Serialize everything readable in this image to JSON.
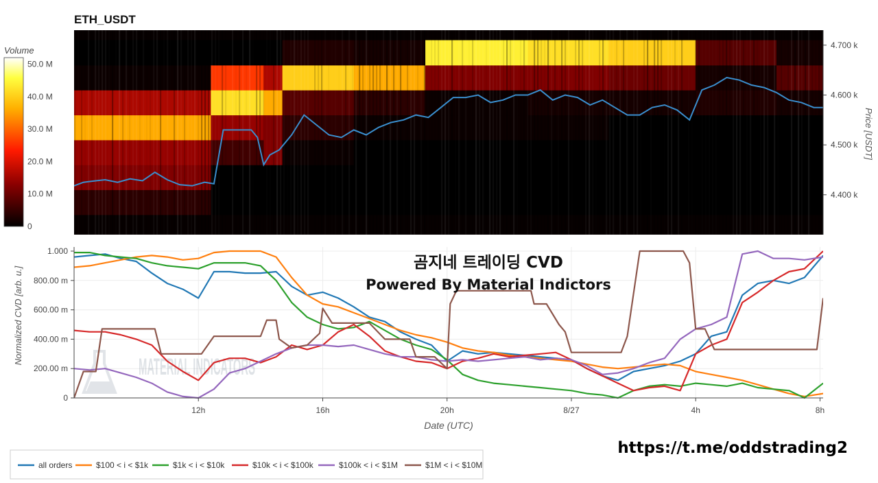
{
  "chart_data": [
    {
      "type": "heatmap",
      "title": "ETH_USDT",
      "colorbar": {
        "title": "Volume",
        "ticks": [
          "50.0 M",
          "40.0 M",
          "30.0 M",
          "20.0 M",
          "10.0 M",
          "0"
        ],
        "tick_values": [
          50,
          40,
          30,
          20,
          10,
          0
        ],
        "range": [
          0,
          52
        ]
      },
      "y_axis": {
        "label": "Price [USDT]",
        "ticks": [
          "4.700 k",
          "4.600 k",
          "4.500 k",
          "4.400 k"
        ],
        "tick_values": [
          4700,
          4600,
          4500,
          4400
        ],
        "range": [
          4320,
          4730
        ]
      },
      "price_bands": [
        4385,
        4435,
        4485,
        4535,
        4585,
        4635,
        4685
      ],
      "x_range": [
        8.0,
        32.1
      ],
      "volume_segments": [
        {
          "x0": 8.0,
          "x1": 12.4,
          "bands": [
            4,
            12,
            14,
            36,
            16,
            1,
            0
          ]
        },
        {
          "x0": 12.4,
          "x1": 14.1,
          "bands": [
            0,
            0,
            6,
            14,
            42,
            26,
            0
          ]
        },
        {
          "x0": 14.1,
          "x1": 14.7,
          "bands": [
            0,
            0,
            12,
            12,
            36,
            16,
            0
          ]
        },
        {
          "x0": 14.7,
          "x1": 17.0,
          "bands": [
            0,
            0,
            1,
            4,
            8,
            40,
            3
          ]
        },
        {
          "x0": 17.0,
          "x1": 19.3,
          "bands": [
            0,
            0,
            0,
            1,
            4,
            36,
            2
          ]
        },
        {
          "x0": 19.3,
          "x1": 22.6,
          "bands": [
            0,
            0,
            0,
            1,
            1,
            12,
            44
          ]
        },
        {
          "x0": 22.6,
          "x1": 25.2,
          "bands": [
            0,
            0,
            0,
            1,
            2,
            12,
            42
          ]
        },
        {
          "x0": 25.2,
          "x1": 28.0,
          "bands": [
            0,
            0,
            0,
            0,
            2,
            10,
            40
          ]
        },
        {
          "x0": 28.0,
          "x1": 30.6,
          "bands": [
            0,
            0,
            0,
            0,
            3,
            2,
            8
          ]
        },
        {
          "x0": 30.6,
          "x1": 32.1,
          "bands": [
            0,
            0,
            0,
            0,
            2,
            8,
            2
          ]
        }
      ],
      "price_series": {
        "x": [
          8.0,
          8.3,
          8.7,
          9.0,
          9.4,
          9.8,
          10.2,
          10.6,
          11.0,
          11.4,
          11.8,
          12.2,
          12.5,
          12.8,
          13.1,
          13.4,
          13.7,
          13.9,
          14.1,
          14.3,
          14.6,
          15.0,
          15.4,
          15.8,
          16.2,
          16.6,
          17.0,
          17.4,
          17.8,
          18.2,
          18.6,
          19.0,
          19.4,
          19.8,
          20.2,
          20.6,
          21.0,
          21.4,
          21.8,
          22.2,
          22.6,
          23.0,
          23.4,
          23.8,
          24.2,
          24.6,
          25.0,
          25.4,
          25.8,
          26.2,
          26.6,
          27.0,
          27.4,
          27.8,
          28.2,
          28.6,
          29.0,
          29.4,
          29.8,
          30.2,
          30.6,
          31.0,
          31.4,
          31.8,
          32.1
        ],
        "y": [
          4418,
          4425,
          4428,
          4430,
          4425,
          4432,
          4428,
          4445,
          4430,
          4420,
          4418,
          4425,
          4422,
          4530,
          4530,
          4530,
          4530,
          4515,
          4460,
          4480,
          4490,
          4520,
          4560,
          4540,
          4520,
          4515,
          4530,
          4520,
          4535,
          4545,
          4550,
          4560,
          4555,
          4575,
          4595,
          4595,
          4600,
          4585,
          4590,
          4600,
          4600,
          4610,
          4590,
          4600,
          4595,
          4580,
          4590,
          4575,
          4560,
          4560,
          4575,
          4580,
          4570,
          4550,
          4610,
          4620,
          4635,
          4630,
          4620,
          4615,
          4605,
          4590,
          4585,
          4575,
          4575
        ]
      }
    },
    {
      "type": "line",
      "title": "",
      "xlabel": "Date (UTC)",
      "ylabel": "Normalized CVD [arb. u.]",
      "ylim": [
        0,
        1
      ],
      "x_range": [
        8.0,
        32.1
      ],
      "x_ticks": [
        {
          "value": 12,
          "label": "12h"
        },
        {
          "value": 16,
          "label": "16h"
        },
        {
          "value": 20,
          "label": "20h"
        },
        {
          "value": 24,
          "label": "8/27"
        },
        {
          "value": 28,
          "label": "4h"
        },
        {
          "value": 32,
          "label": "8h"
        }
      ],
      "y_ticks": [
        {
          "value": 0,
          "label": "0"
        },
        {
          "value": 0.2,
          "label": "200.00 m"
        },
        {
          "value": 0.4,
          "label": "400.00 m"
        },
        {
          "value": 0.6,
          "label": "600.00 m"
        },
        {
          "value": 0.8,
          "label": "800.00 m"
        },
        {
          "value": 1.0,
          "label": "1.000"
        }
      ],
      "legend_position": "bottom-left",
      "series": [
        {
          "name": "all orders",
          "color": "#1f77b4",
          "x": [
            8.0,
            8.5,
            9.0,
            9.5,
            10.0,
            10.5,
            11.0,
            11.5,
            12.0,
            12.5,
            13.0,
            13.5,
            14.0,
            14.5,
            15.0,
            15.5,
            16.0,
            16.5,
            17.0,
            17.5,
            18.0,
            18.5,
            19.0,
            19.5,
            20.0,
            20.5,
            21.0,
            21.5,
            22.0,
            22.5,
            23.0,
            23.5,
            24.0,
            24.5,
            25.0,
            25.5,
            26.0,
            26.5,
            27.0,
            27.5,
            28.0,
            28.5,
            29.0,
            29.5,
            30.0,
            30.5,
            31.0,
            31.5,
            32.1
          ],
          "y": [
            0.96,
            0.97,
            0.98,
            0.95,
            0.93,
            0.85,
            0.78,
            0.74,
            0.68,
            0.86,
            0.86,
            0.85,
            0.85,
            0.86,
            0.76,
            0.7,
            0.72,
            0.68,
            0.62,
            0.55,
            0.52,
            0.45,
            0.4,
            0.36,
            0.25,
            0.32,
            0.3,
            0.31,
            0.3,
            0.29,
            0.28,
            0.27,
            0.26,
            0.2,
            0.15,
            0.12,
            0.18,
            0.2,
            0.22,
            0.25,
            0.3,
            0.42,
            0.45,
            0.7,
            0.78,
            0.8,
            0.78,
            0.82,
            0.97
          ]
        },
        {
          "name": "$100 < i < $1k",
          "color": "#ff7f0e",
          "x": [
            8.0,
            8.5,
            9.0,
            9.5,
            10.0,
            10.5,
            11.0,
            11.5,
            12.0,
            12.5,
            13.0,
            13.5,
            14.0,
            14.5,
            15.0,
            15.5,
            16.0,
            16.5,
            17.0,
            17.5,
            18.0,
            18.5,
            19.0,
            19.5,
            20.0,
            20.5,
            21.0,
            21.5,
            22.0,
            22.5,
            23.0,
            23.5,
            24.0,
            24.5,
            25.0,
            25.5,
            26.0,
            26.5,
            27.0,
            27.5,
            28.0,
            28.5,
            29.0,
            29.5,
            30.0,
            30.5,
            31.0,
            31.5,
            32.1
          ],
          "y": [
            0.89,
            0.9,
            0.92,
            0.94,
            0.96,
            0.97,
            0.96,
            0.94,
            0.95,
            0.99,
            1.0,
            1.0,
            1.0,
            0.96,
            0.82,
            0.7,
            0.64,
            0.62,
            0.58,
            0.54,
            0.5,
            0.46,
            0.43,
            0.41,
            0.38,
            0.34,
            0.32,
            0.31,
            0.29,
            0.28,
            0.27,
            0.26,
            0.25,
            0.23,
            0.21,
            0.2,
            0.21,
            0.22,
            0.23,
            0.22,
            0.18,
            0.16,
            0.14,
            0.12,
            0.09,
            0.06,
            0.03,
            0.01,
            0.03
          ]
        },
        {
          "name": "$1k < i < $10k",
          "color": "#2ca02c",
          "x": [
            8.0,
            8.5,
            9.0,
            9.5,
            10.0,
            10.5,
            11.0,
            11.5,
            12.0,
            12.5,
            13.0,
            13.5,
            14.0,
            14.5,
            15.0,
            15.5,
            16.0,
            16.5,
            17.0,
            17.5,
            18.0,
            18.5,
            19.0,
            19.5,
            20.0,
            20.5,
            21.0,
            21.5,
            22.0,
            22.5,
            23.0,
            23.5,
            24.0,
            24.5,
            25.0,
            25.5,
            26.0,
            26.5,
            27.0,
            27.5,
            28.0,
            28.5,
            29.0,
            29.5,
            30.0,
            30.5,
            31.0,
            31.5,
            32.1
          ],
          "y": [
            0.99,
            0.99,
            0.97,
            0.96,
            0.95,
            0.92,
            0.9,
            0.89,
            0.88,
            0.92,
            0.92,
            0.92,
            0.9,
            0.8,
            0.65,
            0.55,
            0.5,
            0.47,
            0.48,
            0.52,
            0.46,
            0.4,
            0.36,
            0.33,
            0.26,
            0.16,
            0.12,
            0.1,
            0.09,
            0.08,
            0.07,
            0.06,
            0.05,
            0.03,
            0.02,
            0.0,
            0.05,
            0.08,
            0.09,
            0.08,
            0.1,
            0.09,
            0.08,
            0.1,
            0.07,
            0.06,
            0.05,
            0.0,
            0.1
          ]
        },
        {
          "name": "$10k < i < $100k",
          "color": "#d62728",
          "x": [
            8.0,
            8.5,
            9.0,
            9.5,
            10.0,
            10.5,
            11.0,
            11.5,
            12.0,
            12.5,
            13.0,
            13.5,
            14.0,
            14.5,
            15.0,
            15.5,
            16.0,
            16.5,
            17.0,
            17.5,
            18.0,
            18.5,
            19.0,
            19.5,
            20.0,
            20.5,
            21.0,
            21.5,
            22.0,
            22.5,
            23.0,
            23.5,
            24.0,
            24.5,
            25.0,
            25.5,
            26.0,
            26.5,
            27.0,
            27.5,
            28.0,
            28.5,
            29.0,
            29.5,
            30.0,
            30.5,
            31.0,
            31.5,
            32.1
          ],
          "y": [
            0.46,
            0.45,
            0.45,
            0.43,
            0.4,
            0.36,
            0.25,
            0.18,
            0.12,
            0.24,
            0.27,
            0.27,
            0.24,
            0.28,
            0.36,
            0.33,
            0.36,
            0.45,
            0.5,
            0.42,
            0.32,
            0.28,
            0.25,
            0.24,
            0.2,
            0.25,
            0.27,
            0.3,
            0.28,
            0.29,
            0.3,
            0.31,
            0.26,
            0.2,
            0.15,
            0.1,
            0.05,
            0.07,
            0.08,
            0.05,
            0.3,
            0.36,
            0.4,
            0.65,
            0.72,
            0.8,
            0.86,
            0.88,
            1.0
          ]
        },
        {
          "name": "$100k < i < $1M",
          "color": "#9467bd",
          "x": [
            8.0,
            8.5,
            9.0,
            9.5,
            10.0,
            10.5,
            11.0,
            11.5,
            12.0,
            12.5,
            13.0,
            13.5,
            14.0,
            14.5,
            15.0,
            15.5,
            16.0,
            16.5,
            17.0,
            17.5,
            18.0,
            18.5,
            19.0,
            19.5,
            20.0,
            20.5,
            21.0,
            21.5,
            22.0,
            22.5,
            23.0,
            23.5,
            24.0,
            24.5,
            25.0,
            25.5,
            26.0,
            26.5,
            27.0,
            27.5,
            28.0,
            28.5,
            29.0,
            29.5,
            30.0,
            30.5,
            31.0,
            31.5,
            32.1
          ],
          "y": [
            0.2,
            0.19,
            0.2,
            0.17,
            0.14,
            0.1,
            0.04,
            0.01,
            0.0,
            0.06,
            0.17,
            0.2,
            0.25,
            0.3,
            0.34,
            0.36,
            0.36,
            0.35,
            0.36,
            0.33,
            0.3,
            0.28,
            0.28,
            0.26,
            0.25,
            0.26,
            0.25,
            0.26,
            0.27,
            0.28,
            0.26,
            0.27,
            0.26,
            0.22,
            0.16,
            0.17,
            0.2,
            0.24,
            0.27,
            0.4,
            0.47,
            0.5,
            0.55,
            0.98,
            1.0,
            0.95,
            0.95,
            0.94,
            0.96
          ]
        },
        {
          "name": "$1M < i < $10M",
          "color": "#8c564b",
          "x": [
            8.0,
            8.3,
            8.4,
            8.7,
            8.9,
            9.4,
            10.0,
            10.6,
            10.8,
            11.0,
            11.5,
            12.0,
            12.1,
            12.5,
            13.0,
            13.5,
            14.0,
            14.2,
            14.5,
            14.6,
            15.0,
            15.5,
            15.9,
            16.0,
            16.3,
            16.6,
            17.0,
            17.5,
            18.0,
            18.4,
            18.8,
            19.0,
            19.6,
            20.0,
            20.1,
            20.3,
            21.0,
            22.0,
            22.7,
            22.8,
            23.2,
            23.6,
            23.8,
            24.0,
            24.6,
            25.0,
            25.6,
            25.8,
            26.2,
            27.0,
            27.6,
            27.8,
            28.0,
            28.3,
            28.6,
            29.0,
            30.0,
            31.0,
            31.6,
            31.9,
            32.1
          ],
          "y": [
            0.0,
            0.18,
            0.18,
            0.18,
            0.47,
            0.47,
            0.47,
            0.47,
            0.3,
            0.3,
            0.3,
            0.3,
            0.3,
            0.42,
            0.42,
            0.42,
            0.42,
            0.53,
            0.53,
            0.4,
            0.34,
            0.36,
            0.44,
            0.61,
            0.51,
            0.51,
            0.51,
            0.51,
            0.4,
            0.4,
            0.4,
            0.28,
            0.28,
            0.2,
            0.64,
            0.73,
            0.73,
            0.73,
            0.73,
            0.64,
            0.64,
            0.5,
            0.45,
            0.31,
            0.31,
            0.31,
            0.31,
            0.42,
            1.0,
            1.0,
            1.0,
            0.92,
            0.47,
            0.47,
            0.33,
            0.33,
            0.33,
            0.33,
            0.33,
            0.33,
            0.68
          ]
        }
      ],
      "annotations": [
        "곰지네 트레이딩 CVD",
        "Powered By Material Indictors"
      ],
      "watermark": "MATERIAL INDICATORS"
    }
  ],
  "footer_link": "https://t.me/oddstrading2"
}
